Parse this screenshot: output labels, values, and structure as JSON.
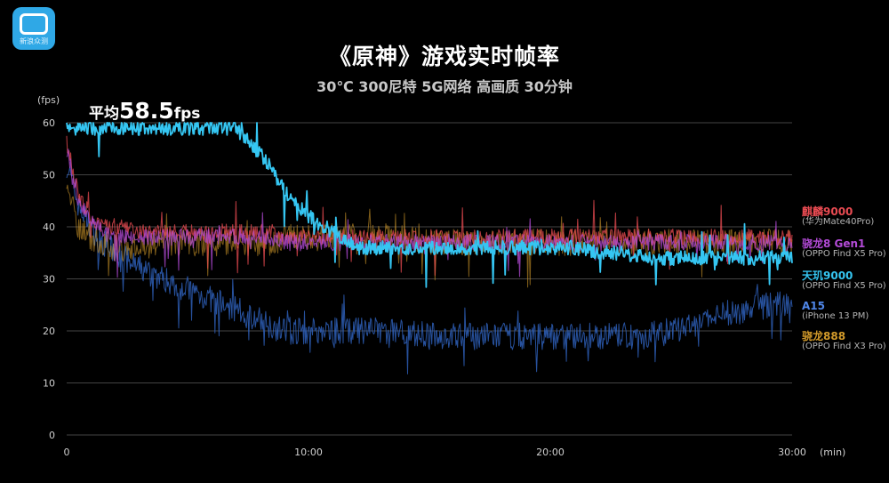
{
  "logo": {
    "text": "新浪众测"
  },
  "title": "《原神》游戏实时帧率",
  "subtitle": "30℃ 300尼特 5G网络 高画质 30分钟",
  "average": {
    "prefix": "平均",
    "value": "58.5",
    "unit": "fps"
  },
  "colors": {
    "kirin": "#e94b52",
    "sd8g1": "#b44bd8",
    "d9000": "#35c6f2",
    "a15": "#2e5fb8",
    "sd888": "#d29a2a"
  },
  "chart_data": {
    "type": "line",
    "title": "《原神》游戏实时帧率",
    "subtitle": "30℃ 300尼特 5G网络 高画质 30分钟",
    "xlabel": "(min)",
    "ylabel": "(fps)",
    "xlim": [
      0,
      30
    ],
    "ylim": [
      0,
      60
    ],
    "x_ticks": [
      "0",
      "10:00",
      "20:00",
      "30:00"
    ],
    "y_ticks": [
      "0",
      "10",
      "20",
      "30",
      "40",
      "50",
      "60"
    ],
    "annotation": "平均58.5fps",
    "x": [
      0,
      0.5,
      1,
      1.5,
      2,
      3,
      4,
      5,
      6,
      7,
      8,
      8.5,
      9,
      10,
      11,
      12,
      13,
      14,
      15,
      16,
      17,
      18,
      19,
      20,
      21,
      22,
      23,
      24,
      25,
      26,
      27,
      28,
      29,
      30
    ],
    "series": [
      {
        "name": "麒麟9000",
        "sub": "(华为Mate40Pro)",
        "color_key": "kirin",
        "values": [
          56,
          46,
          42,
          40,
          40,
          39,
          39,
          39,
          39,
          39,
          39,
          39,
          38,
          38,
          38,
          38,
          38,
          38,
          38,
          38,
          38,
          38,
          38,
          38,
          38,
          38,
          38,
          38,
          38,
          38,
          38,
          38,
          38,
          38
        ]
      },
      {
        "name": "骁龙8 Gen1",
        "sub": "(OPPO Find X5 Pro)",
        "color_key": "sd8g1",
        "values": [
          55,
          45,
          41,
          39,
          38,
          38,
          38,
          38,
          38,
          38,
          38,
          38,
          37,
          37,
          37,
          37,
          37,
          37,
          37,
          37,
          37,
          37,
          37,
          37,
          37,
          37,
          37,
          37,
          37,
          37,
          37,
          37,
          37,
          37
        ]
      },
      {
        "name": "天玑9000",
        "sub": "(OPPO Find X5 Pro)",
        "color_key": "d9000",
        "values": [
          59,
          59,
          59,
          59,
          59,
          59,
          59,
          59,
          59,
          59,
          54,
          51,
          47,
          42,
          39,
          36,
          36,
          36,
          36,
          36,
          36,
          36,
          36,
          36,
          36,
          35,
          35,
          34,
          34,
          34,
          34,
          34,
          34,
          34
        ]
      },
      {
        "name": "A15",
        "sub": "(iPhone 13 PM)",
        "color_key": "a15",
        "values": [
          52,
          44,
          40,
          37,
          35,
          32,
          30,
          28,
          26,
          24,
          22,
          21,
          20,
          20,
          20,
          20,
          20,
          20,
          19,
          19,
          19,
          19,
          19,
          19,
          19,
          19,
          19,
          19,
          20,
          21,
          23,
          24,
          25,
          25
        ]
      },
      {
        "name": "骁龙888",
        "sub": "(OPPO Find X3 Pro)",
        "color_key": "sd888",
        "values": [
          48,
          40,
          38,
          37,
          36,
          36,
          37,
          37,
          37,
          37,
          37,
          37,
          38,
          38,
          38,
          38,
          38,
          38,
          37,
          37,
          37,
          37,
          37,
          37,
          37,
          37,
          37,
          37,
          37,
          37,
          37,
          37,
          37,
          37
        ]
      }
    ]
  }
}
